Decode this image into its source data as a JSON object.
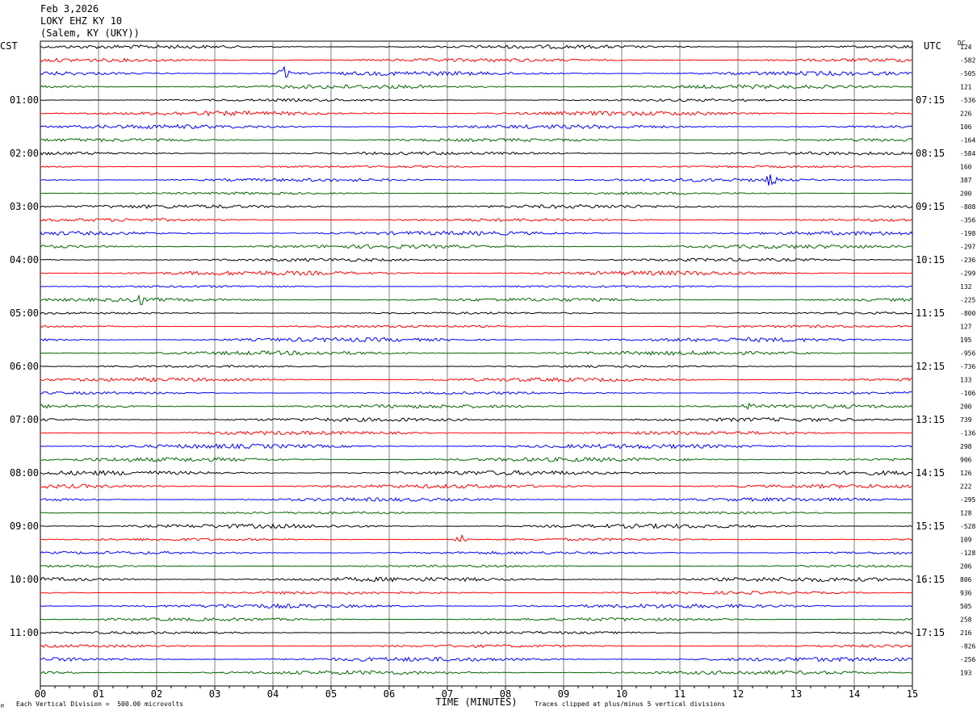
{
  "header": {
    "date": "Feb 3,2026",
    "station": "LOKY EHZ KY 10",
    "location": "(Salem, KY (UKY))"
  },
  "left_tz": "CST",
  "right_tz": "UTC",
  "dc_label": "DC",
  "footer": {
    "scale_note": "Each Vertical Division =  500.00 microvolts",
    "clip_note": "Traces clipped at plus/minus 5 vertical divisions",
    "corner_mark": "M"
  },
  "chart_data": {
    "type": "line",
    "title": "",
    "xlabel": "TIME (MINUTES)",
    "ylabel": "",
    "xlim": [
      0,
      15
    ],
    "x_ticks": [
      "00",
      "01",
      "02",
      "03",
      "04",
      "05",
      "06",
      "07",
      "08",
      "09",
      "10",
      "11",
      "12",
      "13",
      "14",
      "15"
    ],
    "trace_colors": [
      "#000000",
      "#ff0000",
      "#0000ff",
      "#006400"
    ],
    "row_count": 48,
    "left_hour_labels": [
      "01:00",
      "02:00",
      "03:00",
      "04:00",
      "05:00",
      "06:00",
      "07:00",
      "08:00",
      "09:00",
      "10:00",
      "11:00"
    ],
    "right_hour_labels": [
      "07:15",
      "08:15",
      "09:15",
      "10:15",
      "11:15",
      "12:15",
      "13:15",
      "14:15",
      "15:15",
      "16:15",
      "17:15"
    ],
    "dc_offsets": [
      "124",
      "-582",
      "-505",
      "121",
      "-536",
      "226",
      "106",
      "-164",
      "-584",
      "160",
      "387",
      "200",
      "-808",
      "-356",
      "-198",
      "-297",
      "-236",
      "-299",
      "132",
      "-225",
      "-800",
      "127",
      "195",
      "-956",
      "-736",
      "133",
      "-106",
      "200",
      "739",
      "-136",
      "298",
      "906",
      "126",
      "222",
      "-295",
      "128",
      "-528",
      "109",
      "-128",
      "206",
      "806",
      "936",
      "505",
      "258",
      "216",
      "-826",
      "-256",
      "193"
    ],
    "bursts": [
      {
        "row": 2,
        "minute": 4.2,
        "amp": 1.0
      },
      {
        "row": 10,
        "minute": 12.55,
        "amp": 1.0
      },
      {
        "row": 19,
        "minute": 1.7,
        "amp": 1.0
      },
      {
        "row": 27,
        "minute": 12.15,
        "amp": 0.9
      },
      {
        "row": 37,
        "minute": 7.25,
        "amp": 1.0
      }
    ]
  }
}
